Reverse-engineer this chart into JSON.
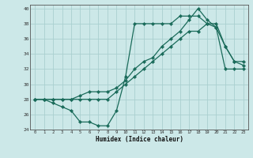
{
  "xlabel": "Humidex (Indice chaleur)",
  "bg_color": "#cce8e8",
  "grid_color": "#aacfcf",
  "line_color": "#1a6b5a",
  "xlim": [
    -0.5,
    23.5
  ],
  "ylim": [
    24,
    40.5
  ],
  "xticks": [
    0,
    1,
    2,
    3,
    4,
    5,
    6,
    7,
    8,
    9,
    10,
    11,
    12,
    13,
    14,
    15,
    16,
    17,
    18,
    19,
    20,
    21,
    22,
    23
  ],
  "yticks": [
    24,
    26,
    28,
    30,
    32,
    34,
    36,
    38,
    40
  ],
  "line1_x": [
    0,
    1,
    2,
    3,
    4,
    5,
    6,
    7,
    8,
    9,
    10,
    11,
    12,
    13,
    14,
    15,
    16,
    17,
    18,
    19,
    20,
    21,
    22,
    23
  ],
  "line1_y": [
    28,
    28,
    27.5,
    27,
    26.5,
    25,
    25,
    24.5,
    24.5,
    26.5,
    31,
    38,
    38,
    38,
    38,
    38,
    39,
    39,
    39,
    38,
    38,
    35,
    33,
    33
  ],
  "line2_x": [
    0,
    1,
    2,
    3,
    4,
    5,
    6,
    7,
    8,
    9,
    10,
    11,
    12,
    13,
    14,
    15,
    16,
    17,
    18,
    19,
    20,
    21,
    22,
    23
  ],
  "line2_y": [
    28,
    28,
    28,
    28,
    28,
    28,
    28,
    28,
    28,
    29,
    30,
    31,
    32,
    33,
    34,
    35,
    36,
    37,
    37,
    38,
    37.5,
    32,
    32,
    32
  ],
  "line3_x": [
    0,
    1,
    2,
    3,
    4,
    5,
    6,
    7,
    8,
    9,
    10,
    11,
    12,
    13,
    14,
    15,
    16,
    17,
    18,
    19,
    20,
    21,
    22,
    23
  ],
  "line3_y": [
    28,
    28,
    28,
    28,
    28,
    28.5,
    29,
    29,
    29,
    29.5,
    30.5,
    32,
    33,
    33.5,
    35,
    36,
    37,
    38.5,
    40,
    38.5,
    37.5,
    35,
    33,
    32.5
  ]
}
